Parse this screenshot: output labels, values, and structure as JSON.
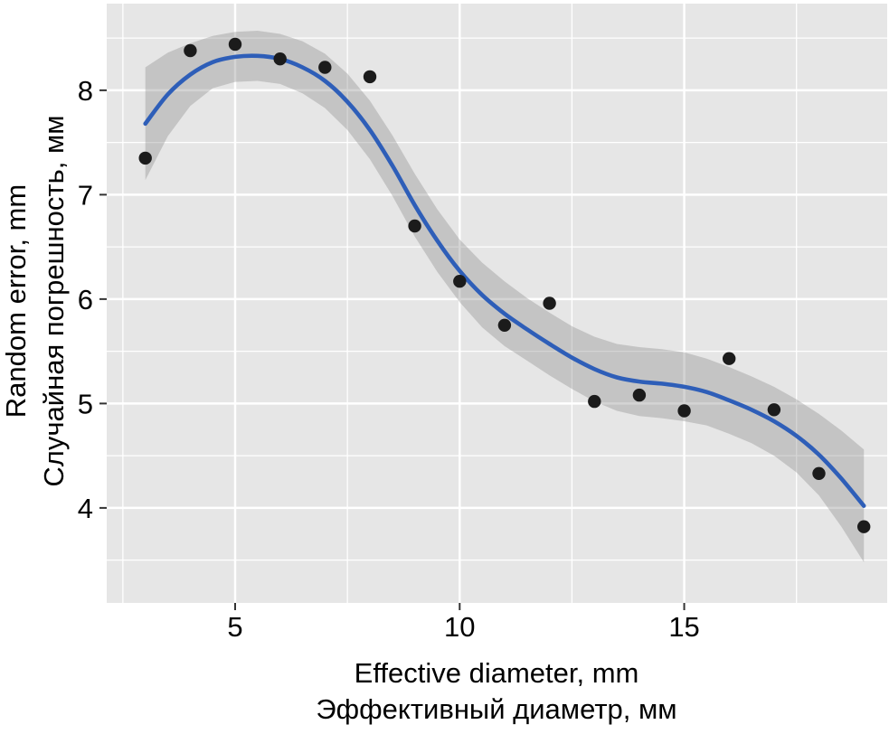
{
  "chart_data": {
    "type": "scatter",
    "title": "",
    "xlabel": [
      "Effective diameter,  mm",
      "Эффективный диаметр, мм"
    ],
    "ylabel": [
      "Random error,  mm",
      "Случайная погрешность, мм"
    ],
    "xlim": [
      2.14,
      19.52
    ],
    "ylim": [
      3.09,
      8.83
    ],
    "xticks": [
      5,
      10,
      15
    ],
    "yticks": [
      4,
      5,
      6,
      7,
      8
    ],
    "x_minor": [
      2.5,
      7.5,
      12.5,
      17.5
    ],
    "y_minor": [
      3.5,
      4.5,
      5.5,
      6.5,
      7.5,
      8.5
    ],
    "grid": true,
    "legend": false,
    "points": [
      [
        3,
        7.35
      ],
      [
        4,
        8.38
      ],
      [
        5,
        8.44
      ],
      [
        6,
        8.3
      ],
      [
        7,
        8.22
      ],
      [
        8,
        8.13
      ],
      [
        9,
        6.7
      ],
      [
        10,
        6.17
      ],
      [
        11,
        5.75
      ],
      [
        12,
        5.96
      ],
      [
        13,
        5.02
      ],
      [
        14,
        5.08
      ],
      [
        15,
        4.93
      ],
      [
        16,
        5.43
      ],
      [
        17,
        4.94
      ],
      [
        18,
        4.33
      ],
      [
        19,
        3.82
      ]
    ],
    "smooth": {
      "x": [
        3,
        3.5,
        4,
        4.5,
        5,
        5.5,
        6,
        6.5,
        7,
        7.5,
        8,
        8.5,
        9,
        9.5,
        10,
        10.5,
        11,
        11.5,
        12,
        12.5,
        13,
        13.5,
        14,
        14.5,
        15,
        15.5,
        16,
        16.5,
        17,
        17.5,
        18,
        18.5,
        19
      ],
      "y": [
        7.68,
        7.96,
        8.15,
        8.27,
        8.32,
        8.33,
        8.3,
        8.22,
        8.09,
        7.89,
        7.62,
        7.28,
        6.9,
        6.56,
        6.27,
        6.04,
        5.86,
        5.71,
        5.57,
        5.44,
        5.33,
        5.25,
        5.21,
        5.19,
        5.16,
        5.11,
        5.03,
        4.94,
        4.83,
        4.69,
        4.51,
        4.28,
        4.02
      ],
      "upper": [
        8.22,
        8.36,
        8.45,
        8.52,
        8.56,
        8.57,
        8.54,
        8.47,
        8.35,
        8.16,
        7.9,
        7.57,
        7.2,
        6.86,
        6.57,
        6.35,
        6.17,
        6.01,
        5.87,
        5.74,
        5.64,
        5.57,
        5.54,
        5.52,
        5.49,
        5.43,
        5.35,
        5.26,
        5.16,
        5.04,
        4.9,
        4.74,
        4.56
      ],
      "lower": [
        7.14,
        7.56,
        7.85,
        8.02,
        8.08,
        8.09,
        8.06,
        7.97,
        7.83,
        7.62,
        7.34,
        6.99,
        6.6,
        6.26,
        5.97,
        5.73,
        5.55,
        5.41,
        5.27,
        5.14,
        5.02,
        4.93,
        4.88,
        4.86,
        4.83,
        4.79,
        4.71,
        4.62,
        4.5,
        4.34,
        4.12,
        3.82,
        3.48
      ]
    },
    "colors": {
      "panel": "#e6e6e6",
      "grid": "#ffffff",
      "band": "#8f8f8f",
      "band_opacity": 0.38,
      "line": "#2e5eb8",
      "point": "#1b1b1b",
      "tick": "#333333",
      "text": "#000000"
    }
  }
}
